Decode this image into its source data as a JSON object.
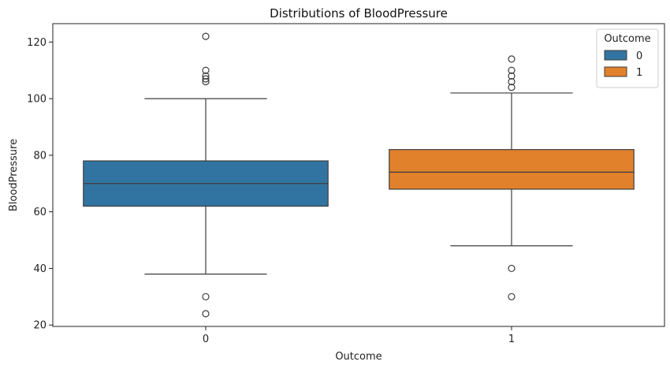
{
  "chart_data": {
    "type": "box",
    "title": "Distributions of BloodPressure",
    "xlabel": "Outcome",
    "ylabel": "BloodPressure",
    "categories": [
      "0",
      "1"
    ],
    "ylim": [
      19.5,
      126.5
    ],
    "yticks": [
      20,
      40,
      60,
      80,
      100,
      120
    ],
    "grid": false,
    "legend": {
      "title": "Outcome",
      "placement": "top-right",
      "entries": [
        "0",
        "1"
      ]
    },
    "series": [
      {
        "name": "0",
        "color": "#3274a1",
        "whisker_low": 38,
        "q1": 62,
        "median": 70,
        "q3": 78,
        "whisker_high": 100,
        "outliers": [
          24,
          30,
          106,
          107,
          108,
          110,
          122
        ]
      },
      {
        "name": "1",
        "color": "#e1812c",
        "whisker_low": 48,
        "q1": 68,
        "median": 74,
        "q3": 82,
        "whisker_high": 102,
        "outliers": [
          30,
          40,
          104,
          106,
          108,
          110,
          114
        ]
      }
    ]
  }
}
